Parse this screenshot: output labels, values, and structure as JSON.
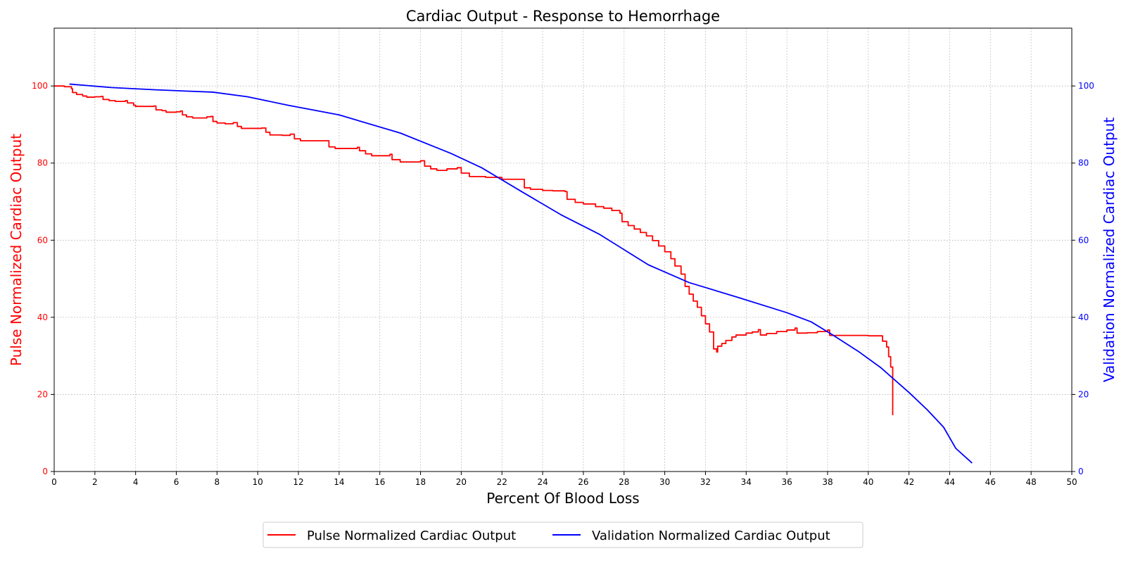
{
  "chart_data": {
    "type": "line",
    "title": "Cardiac Output - Response to Hemorrhage",
    "xlabel": "Percent Of Blood Loss",
    "ylabel_left": "Pulse Normalized Cardiac Output",
    "ylabel_right": "Validation Normalized Cardiac Output",
    "xlim": [
      0,
      50
    ],
    "ylim_left": [
      0,
      115
    ],
    "ylim_right": [
      0,
      115
    ],
    "x_ticks": [
      0,
      2,
      4,
      6,
      8,
      10,
      12,
      14,
      16,
      18,
      20,
      22,
      24,
      26,
      28,
      30,
      32,
      34,
      36,
      38,
      40,
      42,
      44,
      46,
      48,
      50
    ],
    "y_ticks_left": [
      0,
      20,
      40,
      60,
      80,
      100
    ],
    "y_ticks_right": [
      0,
      20,
      40,
      60,
      80,
      100
    ],
    "grid": true,
    "legend_position": "bottom-center",
    "colors": {
      "left_axis": "#ff0000",
      "right_axis": "#0000ff"
    },
    "series": [
      {
        "name": "Pulse Normalized Cardiac Output",
        "axis": "left",
        "color": "#ff0000",
        "points": [
          [
            0.0,
            100.0
          ],
          [
            0.5,
            99.8
          ],
          [
            0.85,
            99.3
          ],
          [
            0.9,
            98.3
          ],
          [
            1.1,
            97.8
          ],
          [
            1.4,
            97.4
          ],
          [
            1.6,
            97.1
          ],
          [
            2.0,
            97.2
          ],
          [
            2.3,
            97.3
          ],
          [
            2.4,
            96.5
          ],
          [
            2.7,
            96.2
          ],
          [
            3.0,
            96.0
          ],
          [
            3.5,
            96.2
          ],
          [
            3.6,
            95.6
          ],
          [
            3.9,
            95.0
          ],
          [
            4.0,
            94.7
          ],
          [
            4.9,
            94.8
          ],
          [
            5.0,
            93.8
          ],
          [
            5.3,
            93.6
          ],
          [
            5.5,
            93.2
          ],
          [
            6.0,
            93.3
          ],
          [
            6.2,
            93.5
          ],
          [
            6.3,
            92.5
          ],
          [
            6.5,
            92.0
          ],
          [
            6.8,
            91.7
          ],
          [
            7.5,
            92.0
          ],
          [
            7.7,
            92.1
          ],
          [
            7.8,
            90.8
          ],
          [
            8.0,
            90.4
          ],
          [
            8.4,
            90.2
          ],
          [
            8.8,
            90.5
          ],
          [
            9.0,
            89.5
          ],
          [
            9.2,
            89.0
          ],
          [
            10.0,
            89.0
          ],
          [
            10.2,
            89.1
          ],
          [
            10.4,
            88.0
          ],
          [
            10.6,
            87.3
          ],
          [
            11.2,
            87.2
          ],
          [
            11.6,
            87.5
          ],
          [
            11.8,
            86.3
          ],
          [
            12.1,
            85.8
          ],
          [
            13.4,
            85.8
          ],
          [
            13.5,
            84.2
          ],
          [
            13.8,
            83.8
          ],
          [
            14.9,
            84.1
          ],
          [
            15.0,
            83.2
          ],
          [
            15.3,
            82.4
          ],
          [
            15.6,
            81.9
          ],
          [
            16.0,
            81.9
          ],
          [
            16.5,
            82.3
          ],
          [
            16.6,
            80.9
          ],
          [
            17.0,
            80.3
          ],
          [
            17.5,
            80.3
          ],
          [
            18.0,
            80.6
          ],
          [
            18.2,
            79.2
          ],
          [
            18.5,
            78.5
          ],
          [
            18.8,
            78.1
          ],
          [
            19.3,
            78.5
          ],
          [
            19.8,
            78.8
          ],
          [
            20.0,
            77.4
          ],
          [
            20.4,
            76.5
          ],
          [
            21.2,
            76.3
          ],
          [
            22.0,
            75.8
          ],
          [
            23.0,
            75.8
          ],
          [
            23.1,
            73.6
          ],
          [
            23.4,
            73.2
          ],
          [
            24.0,
            72.9
          ],
          [
            24.5,
            72.8
          ],
          [
            25.1,
            72.6
          ],
          [
            25.2,
            70.6
          ],
          [
            25.6,
            69.8
          ],
          [
            26.0,
            69.4
          ],
          [
            26.6,
            68.7
          ],
          [
            27.0,
            68.3
          ],
          [
            27.4,
            67.7
          ],
          [
            27.8,
            67.0
          ],
          [
            27.9,
            64.8
          ],
          [
            28.2,
            63.8
          ],
          [
            28.5,
            62.9
          ],
          [
            28.8,
            62.0
          ],
          [
            29.1,
            61.1
          ],
          [
            29.4,
            59.9
          ],
          [
            29.7,
            58.5
          ],
          [
            30.0,
            57.0
          ],
          [
            30.3,
            55.2
          ],
          [
            30.5,
            53.3
          ],
          [
            30.8,
            51.2
          ],
          [
            31.0,
            48.0
          ],
          [
            31.2,
            46.0
          ],
          [
            31.4,
            44.2
          ],
          [
            31.6,
            42.6
          ],
          [
            31.8,
            40.4
          ],
          [
            32.0,
            38.3
          ],
          [
            32.2,
            36.2
          ],
          [
            32.4,
            31.8
          ],
          [
            32.55,
            31.0
          ],
          [
            32.6,
            32.5
          ],
          [
            32.8,
            33.2
          ],
          [
            33.0,
            34.0
          ],
          [
            33.3,
            34.9
          ],
          [
            33.5,
            35.4
          ],
          [
            34.0,
            35.9
          ],
          [
            34.3,
            36.2
          ],
          [
            34.6,
            36.8
          ],
          [
            34.7,
            35.4
          ],
          [
            35.0,
            35.8
          ],
          [
            35.5,
            36.3
          ],
          [
            36.0,
            36.7
          ],
          [
            36.4,
            37.2
          ],
          [
            36.5,
            35.9
          ],
          [
            37.0,
            36.0
          ],
          [
            37.5,
            36.3
          ],
          [
            38.0,
            36.7
          ],
          [
            38.1,
            35.3
          ],
          [
            40.0,
            35.2
          ],
          [
            40.5,
            35.2
          ],
          [
            40.7,
            33.8
          ],
          [
            40.9,
            32.3
          ],
          [
            41.0,
            29.8
          ],
          [
            41.1,
            27.1
          ],
          [
            41.2,
            26.4
          ],
          [
            41.2,
            14.6
          ]
        ]
      },
      {
        "name": "Validation Normalized Cardiac Output",
        "axis": "right",
        "color": "#0000ff",
        "points": [
          [
            0.75,
            100.5
          ],
          [
            2.8,
            99.6
          ],
          [
            5.0,
            99.0
          ],
          [
            7.8,
            98.4
          ],
          [
            9.5,
            97.2
          ],
          [
            11.5,
            95.0
          ],
          [
            14.0,
            92.5
          ],
          [
            17.0,
            87.8
          ],
          [
            19.5,
            82.5
          ],
          [
            21.0,
            78.8
          ],
          [
            23.0,
            72.5
          ],
          [
            24.9,
            66.6
          ],
          [
            26.8,
            61.5
          ],
          [
            29.2,
            53.6
          ],
          [
            31.2,
            49.0
          ],
          [
            33.7,
            45.0
          ],
          [
            36.0,
            41.2
          ],
          [
            37.2,
            38.8
          ],
          [
            38.2,
            35.6
          ],
          [
            39.5,
            31.2
          ],
          [
            40.6,
            27.0
          ],
          [
            42.0,
            20.5
          ],
          [
            42.9,
            16.0
          ],
          [
            43.7,
            11.5
          ],
          [
            44.3,
            6.0
          ],
          [
            45.1,
            2.2
          ]
        ]
      }
    ]
  }
}
